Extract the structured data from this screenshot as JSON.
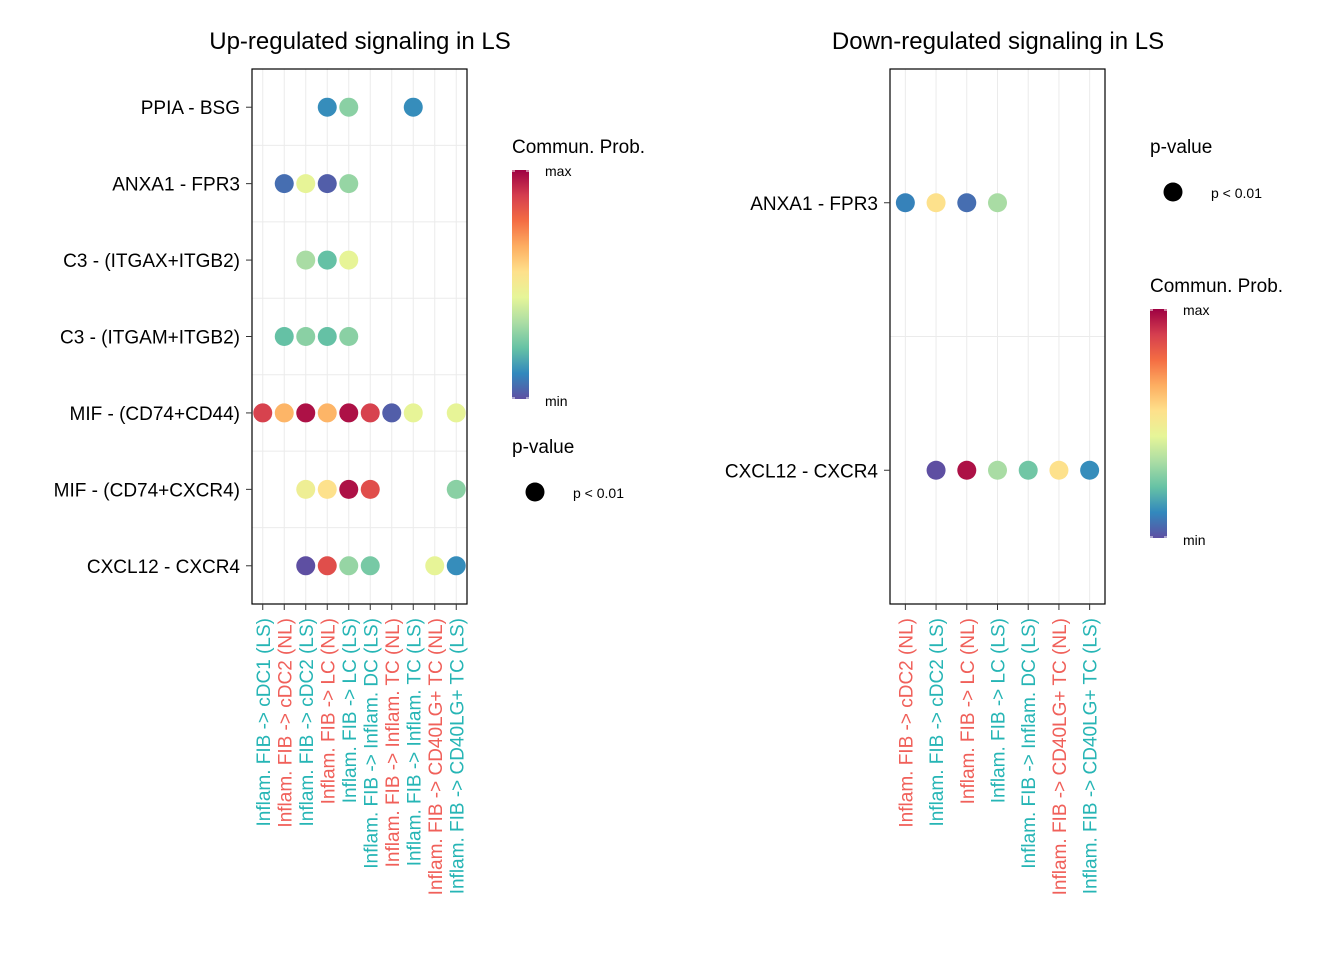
{
  "colors": {
    "LS": "#26b5b5",
    "NL": "#f0605a",
    "scale": [
      "#5e4fa2",
      "#3288bd",
      "#66c2a5",
      "#abdda4",
      "#e6f598",
      "#fee08b",
      "#fdae61",
      "#f46d43",
      "#d53e4f",
      "#9e0142"
    ]
  },
  "chart_data": [
    {
      "type": "dot",
      "title": "Up-regulated signaling in LS",
      "y_categories": [
        "PPIA - BSG",
        "ANXA1 - FPR3",
        "C3 - (ITGAX+ITGB2)",
        "C3 - (ITGAM+ITGB2)",
        "MIF - (CD74+CD44)",
        "MIF - (CD74+CXCR4)",
        "CXCL12 - CXCR4"
      ],
      "x_categories": [
        {
          "label": "Inflam. FIB -> cDC1 (LS)",
          "group": "LS"
        },
        {
          "label": "Inflam. FIB -> cDC2 (NL)",
          "group": "NL"
        },
        {
          "label": "Inflam. FIB -> cDC2 (LS)",
          "group": "LS"
        },
        {
          "label": "Inflam. FIB -> LC (NL)",
          "group": "NL"
        },
        {
          "label": "Inflam. FIB -> LC (LS)",
          "group": "LS"
        },
        {
          "label": "Inflam. FIB -> Inflam. DC (LS)",
          "group": "LS"
        },
        {
          "label": "Inflam. FIB -> Inflam. TC (NL)",
          "group": "NL"
        },
        {
          "label": "Inflam. FIB -> Inflam. TC (LS)",
          "group": "LS"
        },
        {
          "label": "Inflam. FIB -> CD40LG+ TC (NL)",
          "group": "NL"
        },
        {
          "label": "Inflam. FIB -> CD40LG+ TC (LS)",
          "group": "LS"
        }
      ],
      "points": [
        {
          "x": 3,
          "y": 0,
          "prob": 0.12
        },
        {
          "x": 4,
          "y": 0,
          "prob": 0.28
        },
        {
          "x": 7,
          "y": 0,
          "prob": 0.12
        },
        {
          "x": 1,
          "y": 1,
          "prob": 0.06
        },
        {
          "x": 2,
          "y": 1,
          "prob": 0.45
        },
        {
          "x": 3,
          "y": 1,
          "prob": 0.03
        },
        {
          "x": 4,
          "y": 1,
          "prob": 0.3
        },
        {
          "x": 2,
          "y": 2,
          "prob": 0.33
        },
        {
          "x": 3,
          "y": 2,
          "prob": 0.22
        },
        {
          "x": 4,
          "y": 2,
          "prob": 0.45
        },
        {
          "x": 1,
          "y": 3,
          "prob": 0.22
        },
        {
          "x": 2,
          "y": 3,
          "prob": 0.28
        },
        {
          "x": 3,
          "y": 3,
          "prob": 0.22
        },
        {
          "x": 4,
          "y": 3,
          "prob": 0.28
        },
        {
          "x": 0,
          "y": 4,
          "prob": 0.88
        },
        {
          "x": 1,
          "y": 4,
          "prob": 0.65
        },
        {
          "x": 2,
          "y": 4,
          "prob": 0.97
        },
        {
          "x": 3,
          "y": 4,
          "prob": 0.65
        },
        {
          "x": 4,
          "y": 4,
          "prob": 0.97
        },
        {
          "x": 5,
          "y": 4,
          "prob": 0.88
        },
        {
          "x": 6,
          "y": 4,
          "prob": 0.03
        },
        {
          "x": 7,
          "y": 4,
          "prob": 0.45
        },
        {
          "x": 9,
          "y": 4,
          "prob": 0.45
        },
        {
          "x": 2,
          "y": 5,
          "prob": 0.48
        },
        {
          "x": 3,
          "y": 5,
          "prob": 0.55
        },
        {
          "x": 4,
          "y": 5,
          "prob": 0.97
        },
        {
          "x": 5,
          "y": 5,
          "prob": 0.85
        },
        {
          "x": 9,
          "y": 5,
          "prob": 0.28
        },
        {
          "x": 2,
          "y": 6,
          "prob": 0.0
        },
        {
          "x": 3,
          "y": 6,
          "prob": 0.85
        },
        {
          "x": 4,
          "y": 6,
          "prob": 0.3
        },
        {
          "x": 5,
          "y": 6,
          "prob": 0.25
        },
        {
          "x": 8,
          "y": 6,
          "prob": 0.45
        },
        {
          "x": 9,
          "y": 6,
          "prob": 0.12
        }
      ],
      "legend": {
        "prob_title": "Commun. Prob.",
        "prob_max": "max",
        "prob_min": "min",
        "pvalue_title": "p-value",
        "pvalue_label": "p < 0.01",
        "order": [
          "prob",
          "pvalue"
        ]
      }
    },
    {
      "type": "dot",
      "title": "Down-regulated signaling in LS",
      "y_categories": [
        "ANXA1 - FPR3",
        "CXCL12 - CXCR4"
      ],
      "x_categories": [
        {
          "label": "Inflam. FIB -> cDC2 (NL)",
          "group": "NL"
        },
        {
          "label": "Inflam. FIB -> cDC2 (LS)",
          "group": "LS"
        },
        {
          "label": "Inflam. FIB -> LC (NL)",
          "group": "NL"
        },
        {
          "label": "Inflam. FIB -> LC (LS)",
          "group": "LS"
        },
        {
          "label": "Inflam. FIB -> Inflam. DC (LS)",
          "group": "LS"
        },
        {
          "label": "Inflam. FIB -> CD40LG+ TC (NL)",
          "group": "NL"
        },
        {
          "label": "Inflam. FIB -> CD40LG+ TC (LS)",
          "group": "LS"
        }
      ],
      "points": [
        {
          "x": 0,
          "y": 0,
          "prob": 0.1
        },
        {
          "x": 1,
          "y": 0,
          "prob": 0.55
        },
        {
          "x": 2,
          "y": 0,
          "prob": 0.06
        },
        {
          "x": 3,
          "y": 0,
          "prob": 0.33
        },
        {
          "x": 1,
          "y": 1,
          "prob": 0.0
        },
        {
          "x": 2,
          "y": 1,
          "prob": 0.97
        },
        {
          "x": 3,
          "y": 1,
          "prob": 0.33
        },
        {
          "x": 4,
          "y": 1,
          "prob": 0.24
        },
        {
          "x": 5,
          "y": 1,
          "prob": 0.55
        },
        {
          "x": 6,
          "y": 1,
          "prob": 0.12
        }
      ],
      "legend": {
        "prob_title": "Commun. Prob.",
        "prob_max": "max",
        "prob_min": "min",
        "pvalue_title": "p-value",
        "pvalue_label": "p < 0.01",
        "order": [
          "pvalue",
          "prob"
        ]
      }
    }
  ]
}
